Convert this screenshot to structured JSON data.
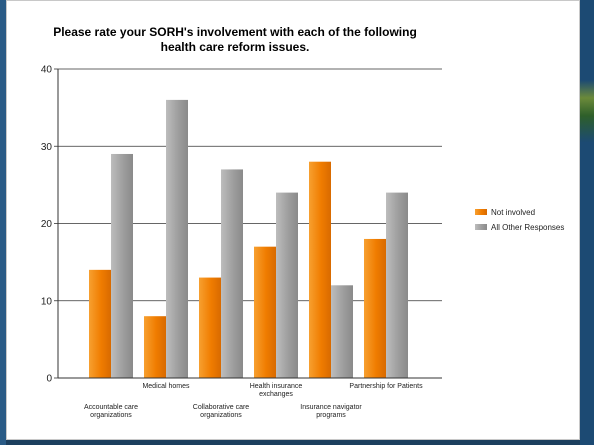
{
  "chart_data": {
    "type": "bar",
    "title_lines": [
      "Please rate your SORH's involvement with each of the following",
      "health care reform issues."
    ],
    "categories": [
      "Accountable care organizations",
      "Medical homes",
      "Collaborative care organizations",
      "Health insurance exchanges",
      "Insurance navigator programs",
      "Partnership for Patients"
    ],
    "category_label_lines": [
      [
        "Accountable care",
        "organizations"
      ],
      [
        "Medical homes"
      ],
      [
        "Collaborative care",
        "organizations"
      ],
      [
        "Health insurance",
        "exchanges"
      ],
      [
        "Insurance navigator",
        "programs"
      ],
      [
        "Partnership for Patients"
      ]
    ],
    "series": [
      {
        "name": "Not involved",
        "values": [
          14,
          8,
          13,
          17,
          28,
          18
        ],
        "color": "#f07c00"
      },
      {
        "name": "All Other Responses",
        "values": [
          29,
          36,
          27,
          24,
          12,
          24
        ],
        "color": "#999999"
      }
    ],
    "y_ticks": [
      "0",
      "10",
      "20",
      "30",
      "40"
    ],
    "ylim": [
      0,
      40
    ],
    "grid": true,
    "legend_position": "right"
  }
}
